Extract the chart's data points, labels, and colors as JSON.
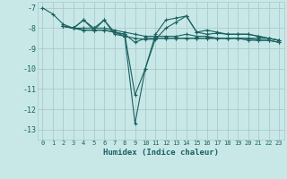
{
  "xlabel": "Humidex (Indice chaleur)",
  "bg_color": "#c8e8e8",
  "grid_color": "#b0c8c8",
  "line_color": "#1a6060",
  "xlim": [
    -0.5,
    23.5
  ],
  "ylim": [
    -13.5,
    -6.7
  ],
  "yticks": [
    -7,
    -8,
    -9,
    -10,
    -11,
    -12,
    -13
  ],
  "xticks": [
    0,
    1,
    2,
    3,
    4,
    5,
    6,
    7,
    8,
    9,
    10,
    11,
    12,
    13,
    14,
    15,
    16,
    17,
    18,
    19,
    20,
    21,
    22,
    23
  ],
  "lines": [
    {
      "x": [
        0,
        1,
        2,
        3,
        4,
        5,
        6,
        7,
        8,
        9,
        10,
        11,
        12,
        13,
        14,
        15,
        16,
        17,
        18,
        19,
        20,
        21,
        22,
        23
      ],
      "y": [
        -7.0,
        -7.3,
        -7.8,
        -8.0,
        -7.6,
        -8.0,
        -7.6,
        -8.2,
        -8.4,
        -12.7,
        -10.0,
        -8.3,
        -7.6,
        -7.5,
        -7.4,
        -8.2,
        -8.1,
        -8.2,
        -8.3,
        -8.3,
        -8.3,
        -8.4,
        -8.5,
        -8.6
      ]
    },
    {
      "x": [
        2,
        3,
        4,
        5,
        6,
        7,
        8,
        9,
        10,
        11,
        12,
        13,
        14,
        15,
        16,
        17,
        18,
        19,
        20,
        21,
        22,
        23
      ],
      "y": [
        -7.9,
        -8.0,
        -8.0,
        -8.0,
        -8.0,
        -8.1,
        -8.2,
        -8.3,
        -8.4,
        -8.4,
        -8.4,
        -8.4,
        -8.3,
        -8.4,
        -8.4,
        -8.5,
        -8.5,
        -8.5,
        -8.5,
        -8.5,
        -8.5,
        -8.6
      ]
    },
    {
      "x": [
        2,
        3,
        4,
        5,
        6,
        7,
        8,
        9,
        10,
        11,
        12,
        13,
        14,
        15,
        16,
        17,
        18,
        19,
        20,
        21,
        22,
        23
      ],
      "y": [
        -7.9,
        -8.0,
        -8.1,
        -8.1,
        -8.1,
        -8.2,
        -8.3,
        -8.7,
        -8.5,
        -8.5,
        -8.5,
        -8.5,
        -8.5,
        -8.5,
        -8.5,
        -8.5,
        -8.5,
        -8.5,
        -8.5,
        -8.6,
        -8.6,
        -8.7
      ]
    },
    {
      "x": [
        2,
        3,
        4,
        5,
        6,
        7,
        8,
        9,
        10,
        11,
        12,
        13,
        14,
        15,
        16,
        17,
        18,
        19,
        20,
        21,
        22,
        23
      ],
      "y": [
        -7.9,
        -8.0,
        -8.1,
        -8.1,
        -8.1,
        -8.2,
        -8.3,
        -11.3,
        -10.0,
        -8.5,
        -8.5,
        -8.5,
        -8.5,
        -8.5,
        -8.5,
        -8.5,
        -8.5,
        -8.5,
        -8.6,
        -8.6,
        -8.6,
        -8.7
      ]
    },
    {
      "x": [
        2,
        3,
        4,
        5,
        6,
        7,
        8,
        9,
        10,
        11,
        12,
        13,
        14,
        15,
        16,
        17,
        18,
        19,
        20,
        21,
        22,
        23
      ],
      "y": [
        -7.9,
        -8.0,
        -7.6,
        -8.1,
        -7.6,
        -8.3,
        -8.4,
        -8.5,
        -8.55,
        -8.55,
        -8.0,
        -7.7,
        -7.4,
        -8.2,
        -8.3,
        -8.25,
        -8.3,
        -8.3,
        -8.3,
        -8.4,
        -8.5,
        -8.6
      ]
    }
  ]
}
